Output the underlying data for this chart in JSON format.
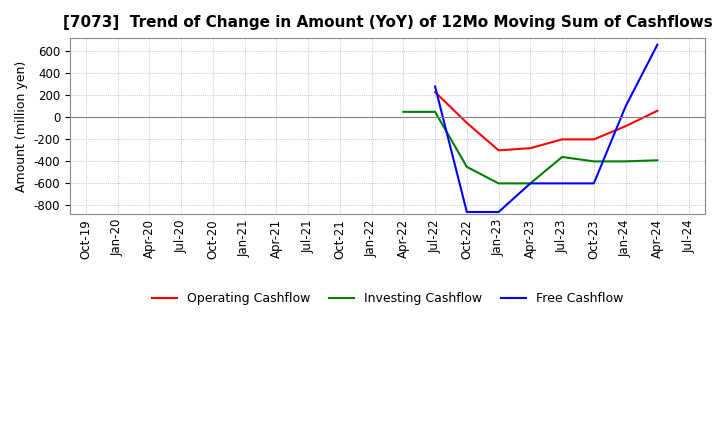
{
  "title": "[7073]  Trend of Change in Amount (YoY) of 12Mo Moving Sum of Cashflows",
  "ylabel": "Amount (million yen)",
  "title_fontsize": 11,
  "label_fontsize": 9,
  "tick_fontsize": 8.5,
  "background_color": "#ffffff",
  "grid_color": "#a0b4c8",
  "x_labels": [
    "Oct-19",
    "Jan-20",
    "Apr-20",
    "Jul-20",
    "Oct-20",
    "Jan-21",
    "Apr-21",
    "Jul-21",
    "Oct-21",
    "Jan-22",
    "Apr-22",
    "Jul-22",
    "Oct-22",
    "Jan-23",
    "Apr-23",
    "Jul-23",
    "Oct-23",
    "Jan-24",
    "Apr-24",
    "Jul-24"
  ],
  "ylim": [
    -880,
    720
  ],
  "yticks": [
    -800,
    -600,
    -400,
    -200,
    0,
    200,
    400,
    600
  ],
  "operating_x": [
    11,
    12,
    13,
    14,
    15,
    16,
    17,
    18
  ],
  "operating_y": [
    230,
    -50,
    -300,
    -280,
    -200,
    -200,
    -80,
    60
  ],
  "investing_x": [
    10,
    11,
    12,
    13,
    14,
    15,
    16,
    17,
    18
  ],
  "investing_y": [
    50,
    50,
    -450,
    -600,
    -600,
    -360,
    -400,
    -400,
    -390
  ],
  "free_x": [
    11,
    12,
    13,
    14,
    15,
    16,
    17,
    18
  ],
  "free_y": [
    280,
    -860,
    -860,
    -600,
    -600,
    -600,
    100,
    660
  ],
  "operating_color": "#ff0000",
  "investing_color": "#008000",
  "free_color": "#0000ff"
}
